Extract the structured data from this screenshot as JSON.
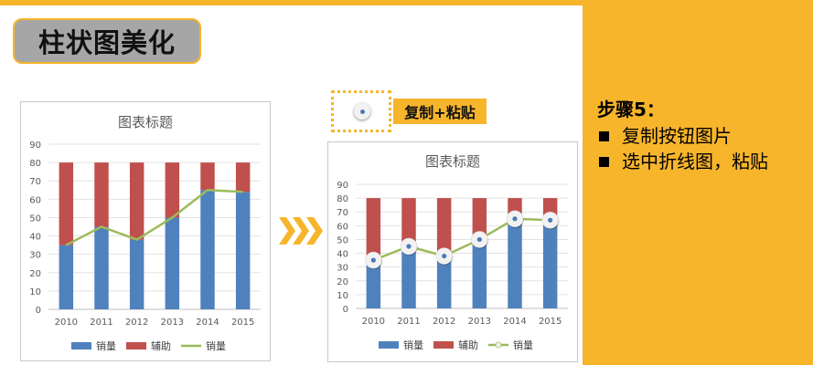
{
  "slide": {
    "title": "柱状图美化",
    "copy_paste_label": "复制+粘贴",
    "steps": {
      "title": "步骤5：",
      "items": [
        "复制按钮图片",
        "选中折线图，粘贴"
      ]
    }
  },
  "colors": {
    "accent": "#f7b52c",
    "bar_sales": "#4f81bd",
    "bar_aux": "#c0504d",
    "line_sales": "#9bbb59",
    "title_box": "#a6a6a6"
  },
  "chart_data": [
    {
      "type": "bar",
      "title": "图表标题",
      "categories": [
        "2010",
        "2011",
        "2012",
        "2013",
        "2014",
        "2015"
      ],
      "ylim": [
        0,
        90
      ],
      "yticks": [
        0,
        10,
        20,
        30,
        40,
        50,
        60,
        70,
        80,
        90
      ],
      "stacked": true,
      "series": [
        {
          "name": "销量",
          "kind": "bar",
          "values": [
            35,
            45,
            38,
            50,
            65,
            64
          ]
        },
        {
          "name": "辅助",
          "kind": "bar",
          "values": [
            45,
            35,
            42,
            30,
            15,
            16
          ]
        },
        {
          "name": "销量",
          "kind": "line",
          "values": [
            35,
            45,
            38,
            50,
            65,
            64
          ],
          "markers": false
        }
      ],
      "grid": true,
      "legend": "bottom"
    },
    {
      "type": "bar",
      "title": "图表标题",
      "categories": [
        "2010",
        "2011",
        "2012",
        "2013",
        "2014",
        "2015"
      ],
      "ylim": [
        0,
        90
      ],
      "yticks": [
        0,
        10,
        20,
        30,
        40,
        50,
        60,
        70,
        80,
        90
      ],
      "stacked": true,
      "series": [
        {
          "name": "销量",
          "kind": "bar",
          "values": [
            35,
            45,
            38,
            50,
            65,
            64
          ]
        },
        {
          "name": "辅助",
          "kind": "bar",
          "values": [
            45,
            35,
            42,
            30,
            15,
            16
          ]
        },
        {
          "name": "销量",
          "kind": "line",
          "values": [
            35,
            45,
            38,
            50,
            65,
            64
          ],
          "markers": true
        }
      ],
      "grid": true,
      "legend": "bottom"
    }
  ]
}
